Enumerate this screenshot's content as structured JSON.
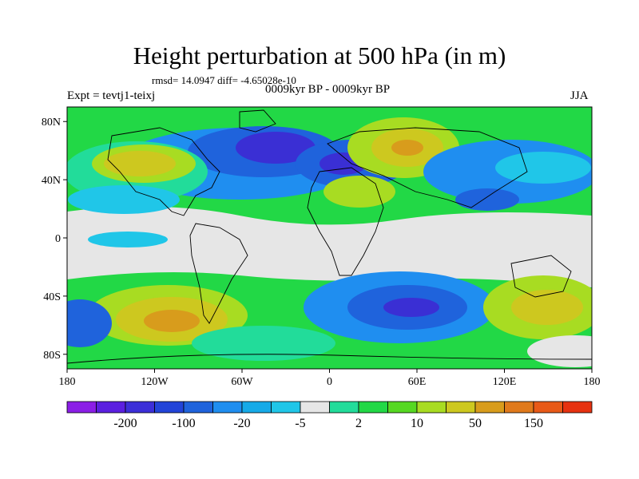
{
  "title": "Height perturbation at 500 hPa (in m)",
  "stats_line": "rmsd= 14.0947 diff= -4.65028e-10",
  "left_label": "Expt = tevtj1-teixj",
  "center_label": "0009kyr BP - 0009kyr BP",
  "right_label": "JJA",
  "lat_ticks": [
    "80N",
    "40N",
    "0",
    "40S",
    "80S"
  ],
  "lat_values": [
    80,
    40,
    0,
    -40,
    -80
  ],
  "lon_ticks": [
    "180",
    "120W",
    "60W",
    "0",
    "60E",
    "120E",
    "180"
  ],
  "lon_values": [
    -180,
    -120,
    -60,
    0,
    60,
    120,
    180
  ],
  "colorbar": {
    "colors": [
      "#8b1ee6",
      "#5b1fe0",
      "#3c2fd8",
      "#2244d8",
      "#1f63dc",
      "#1f8ef0",
      "#16aae8",
      "#20c6e8",
      "#e6e6e6",
      "#22dc9a",
      "#22d846",
      "#56d822",
      "#a8dc22",
      "#cdc81f",
      "#d89c1c",
      "#e07a1c",
      "#e85a18",
      "#e63210"
    ],
    "labels": [
      "-200",
      "-100",
      "-20",
      "-5",
      "2",
      "10",
      "50",
      "150"
    ],
    "label_positions": [
      1,
      3,
      5,
      7,
      9,
      11,
      13,
      15
    ]
  },
  "field_palette": {
    "neg_strong": "#3a2fd4",
    "neg_mid": "#1f63dc",
    "neg_light": "#1f8ef0",
    "neg_pale": "#20c6e8",
    "neutral": "#e6e6e6",
    "pos_pale": "#22dc9a",
    "pos_light": "#22d846",
    "pos_mid": "#a8dc22",
    "pos_strong": "#cdc81f",
    "pos_peak": "#d89c1c"
  }
}
